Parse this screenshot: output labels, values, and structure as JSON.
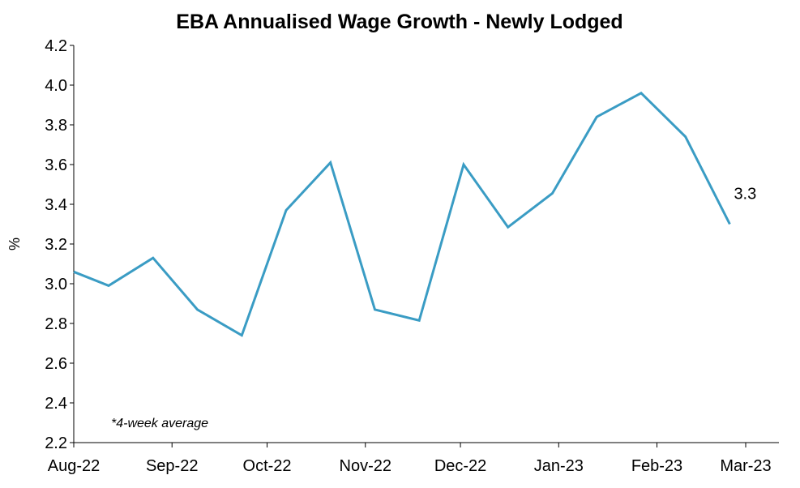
{
  "chart_data": {
    "type": "line",
    "title": "EBA Annualised Wage Growth - Newly Lodged",
    "xlabel": "",
    "ylabel": "%",
    "ylim": [
      2.2,
      4.2
    ],
    "yticks": [
      "2.2",
      "2.4",
      "2.6",
      "2.8",
      "3.0",
      "3.2",
      "3.4",
      "3.6",
      "3.8",
      "4.0",
      "4.2"
    ],
    "x_range": [
      "2022-08-01",
      "2023-03-01"
    ],
    "x_ticks": [
      {
        "label": "Aug-22",
        "date": "2022-08-01"
      },
      {
        "label": "Sep-22",
        "date": "2022-09-01"
      },
      {
        "label": "Oct-22",
        "date": "2022-10-01"
      },
      {
        "label": "Nov-22",
        "date": "2022-11-01"
      },
      {
        "label": "Dec-22",
        "date": "2022-12-01"
      },
      {
        "label": "Jan-23",
        "date": "2023-01-01"
      },
      {
        "label": "Feb-23",
        "date": "2023-02-01"
      },
      {
        "label": "Mar-23",
        "date": "2023-03-01"
      }
    ],
    "grid": false,
    "series": [
      {
        "color": "#3A9CC4",
        "points": [
          {
            "x": "2022-08-01",
            "y": 3.06
          },
          {
            "x": "2022-08-12",
            "y": 2.99
          },
          {
            "x": "2022-08-26",
            "y": 3.13
          },
          {
            "x": "2022-09-09",
            "y": 2.87
          },
          {
            "x": "2022-09-23",
            "y": 2.74
          },
          {
            "x": "2022-10-07",
            "y": 3.37
          },
          {
            "x": "2022-10-21",
            "y": 3.61
          },
          {
            "x": "2022-11-04",
            "y": 2.87
          },
          {
            "x": "2022-11-18",
            "y": 2.815
          },
          {
            "x": "2022-12-02",
            "y": 3.6
          },
          {
            "x": "2022-12-16",
            "y": 3.285
          },
          {
            "x": "2022-12-30",
            "y": 3.455
          },
          {
            "x": "2023-01-13",
            "y": 3.84
          },
          {
            "x": "2023-01-27",
            "y": 3.96
          },
          {
            "x": "2023-02-10",
            "y": 3.74
          },
          {
            "x": "2023-02-24",
            "y": 3.3
          }
        ]
      }
    ],
    "annotations": [
      {
        "text": "3.3",
        "x": "2023-02-24",
        "y": 3.3
      },
      {
        "text": "*4-week average"
      }
    ]
  }
}
